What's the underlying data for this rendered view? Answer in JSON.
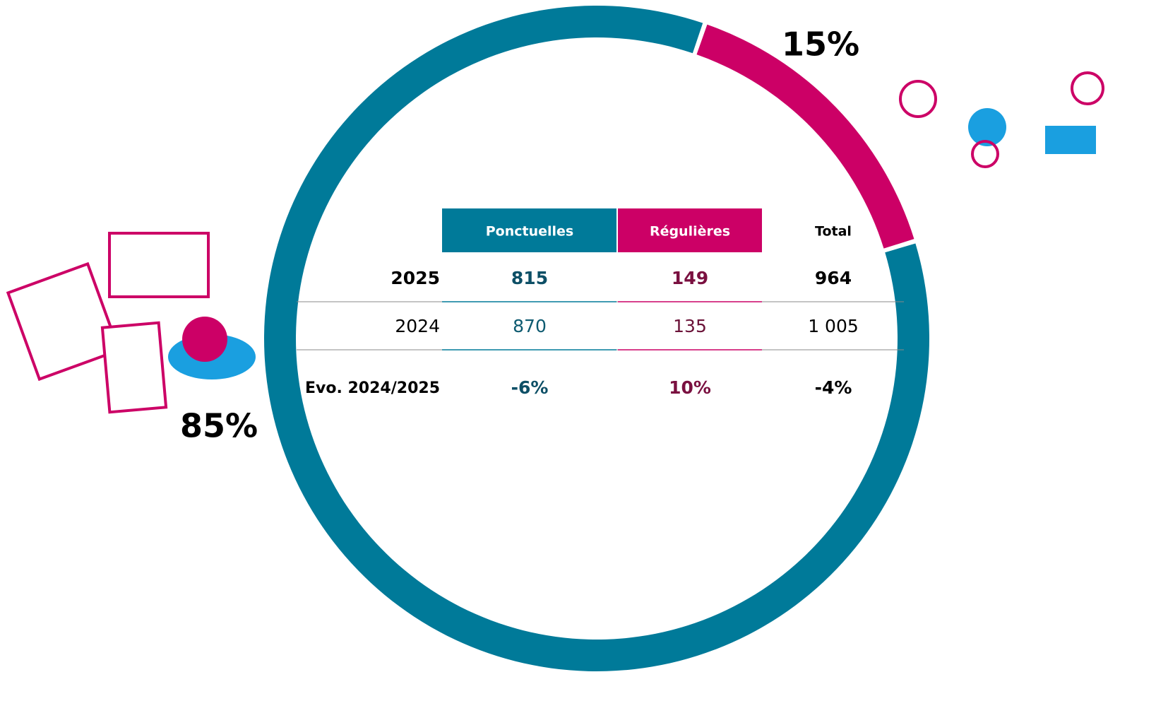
{
  "chart_data": {
    "type": "donut",
    "values": [
      85,
      15
    ],
    "value_labels": [
      "85%",
      "15%"
    ],
    "colors": [
      "#007a99",
      "#cc0066"
    ]
  },
  "table": {
    "header": [
      "Ponctuelles",
      "Régulières",
      "Total"
    ],
    "rows": [
      [
        "2025",
        815,
        149,
        964
      ],
      [
        "2024",
        870,
        135,
        "1 005"
      ],
      [
        "Evo. 2024/2025",
        "-6%",
        "10%",
        "-4%"
      ]
    ]
  }
}
